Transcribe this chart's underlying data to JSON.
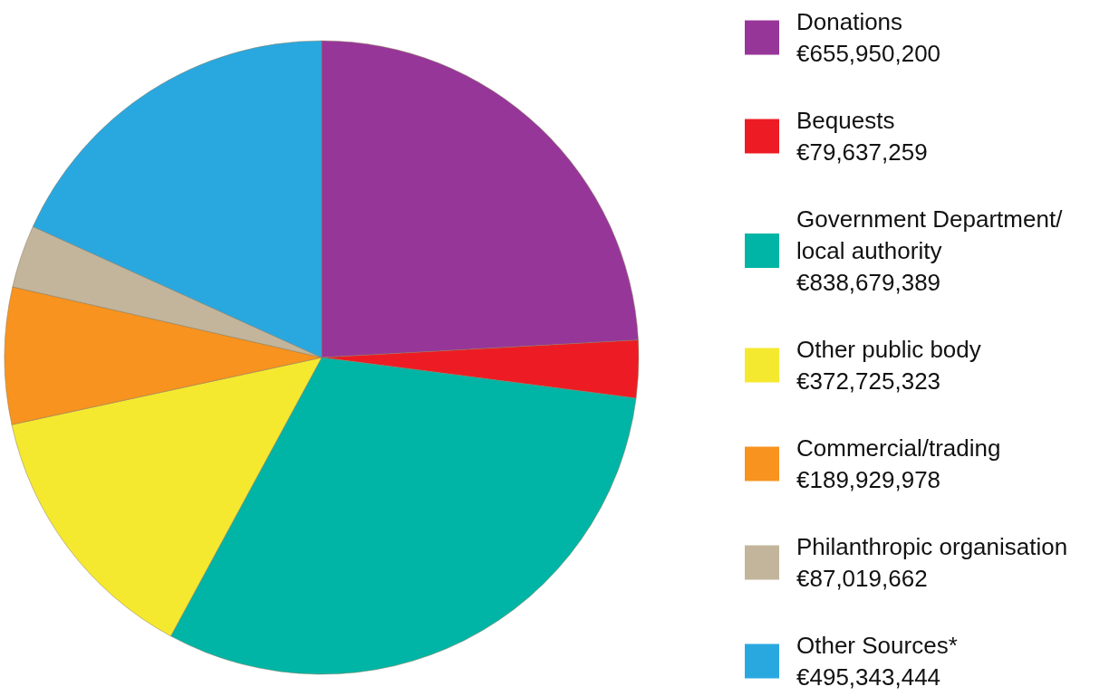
{
  "chart_data": {
    "type": "pie",
    "categories": [
      "Donations",
      "Bequests",
      "Government Department/ local authority",
      "Other public body",
      "Commercial/trading",
      "Philanthropic organisation",
      "Other Sources*"
    ],
    "values": [
      655950200,
      79637259,
      838679389,
      372725323,
      189929978,
      87019662,
      495343444
    ],
    "value_labels": [
      "€655,950,200",
      "€79,637,259",
      "€838,679,389",
      "€372,725,323",
      "€189,929,978",
      "€87,019,662",
      "€495,343,444"
    ],
    "colors": [
      "#973699",
      "#ed1c24",
      "#00b5a5",
      "#f5e930",
      "#f7931e",
      "#c2b59b",
      "#29a8e0"
    ],
    "legend": "right"
  }
}
